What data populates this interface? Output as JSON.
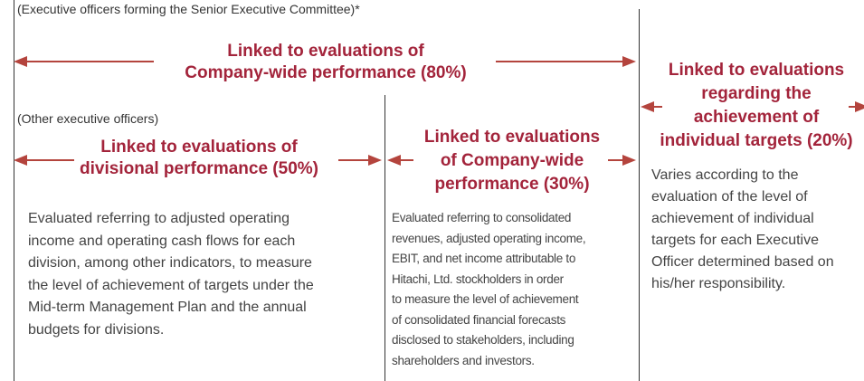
{
  "senior_note": "(Executive officers forming the Senior Executive Committee)*",
  "company_wide_80": {
    "lines": [
      "Linked to evaluations of",
      "Company-wide performance (80%)"
    ]
  },
  "other_note": "(Other executive officers)",
  "divisional": {
    "lines": [
      "Linked to evaluations of",
      "divisional performance (50%)"
    ],
    "description": [
      "Evaluated referring to adjusted operating",
      "income and operating cash flows for each",
      "division, among other indicators, to measure",
      "the level of achievement of targets under the",
      "Mid-term Management Plan and the annual",
      "budgets for divisions."
    ]
  },
  "company_wide_30": {
    "lines": [
      "Linked to evaluations",
      "of Company-wide",
      "performance (30%)"
    ],
    "description": [
      "Evaluated referring to consolidated",
      "revenues, adjusted operating income,",
      "EBIT, and net income attributable to",
      "Hitachi, Ltd. stockholders in order",
      "to measure the level of achievement",
      "of consolidated financial forecasts",
      "disclosed to stakeholders, including",
      "shareholders and investors."
    ]
  },
  "individual": {
    "lines": [
      "Linked to evaluations",
      "regarding the",
      "achievement of",
      "individual targets (20%)"
    ],
    "description": [
      "Varies according to the",
      "evaluation of the level of",
      "achievement of individual",
      "targets for each Executive",
      "Officer determined based on",
      "his/her responsibility."
    ]
  }
}
